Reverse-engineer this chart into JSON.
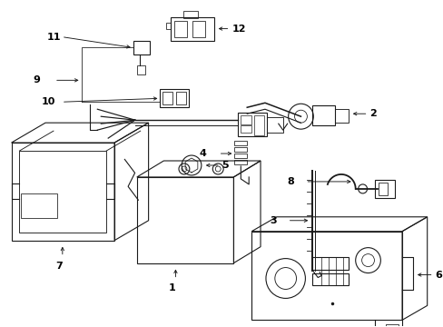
{
  "bg_color": "#ffffff",
  "line_color": "#1a1a1a",
  "figsize": [
    4.89,
    3.6
  ],
  "dpi": 100,
  "lw": 0.8,
  "fs": 8.0
}
